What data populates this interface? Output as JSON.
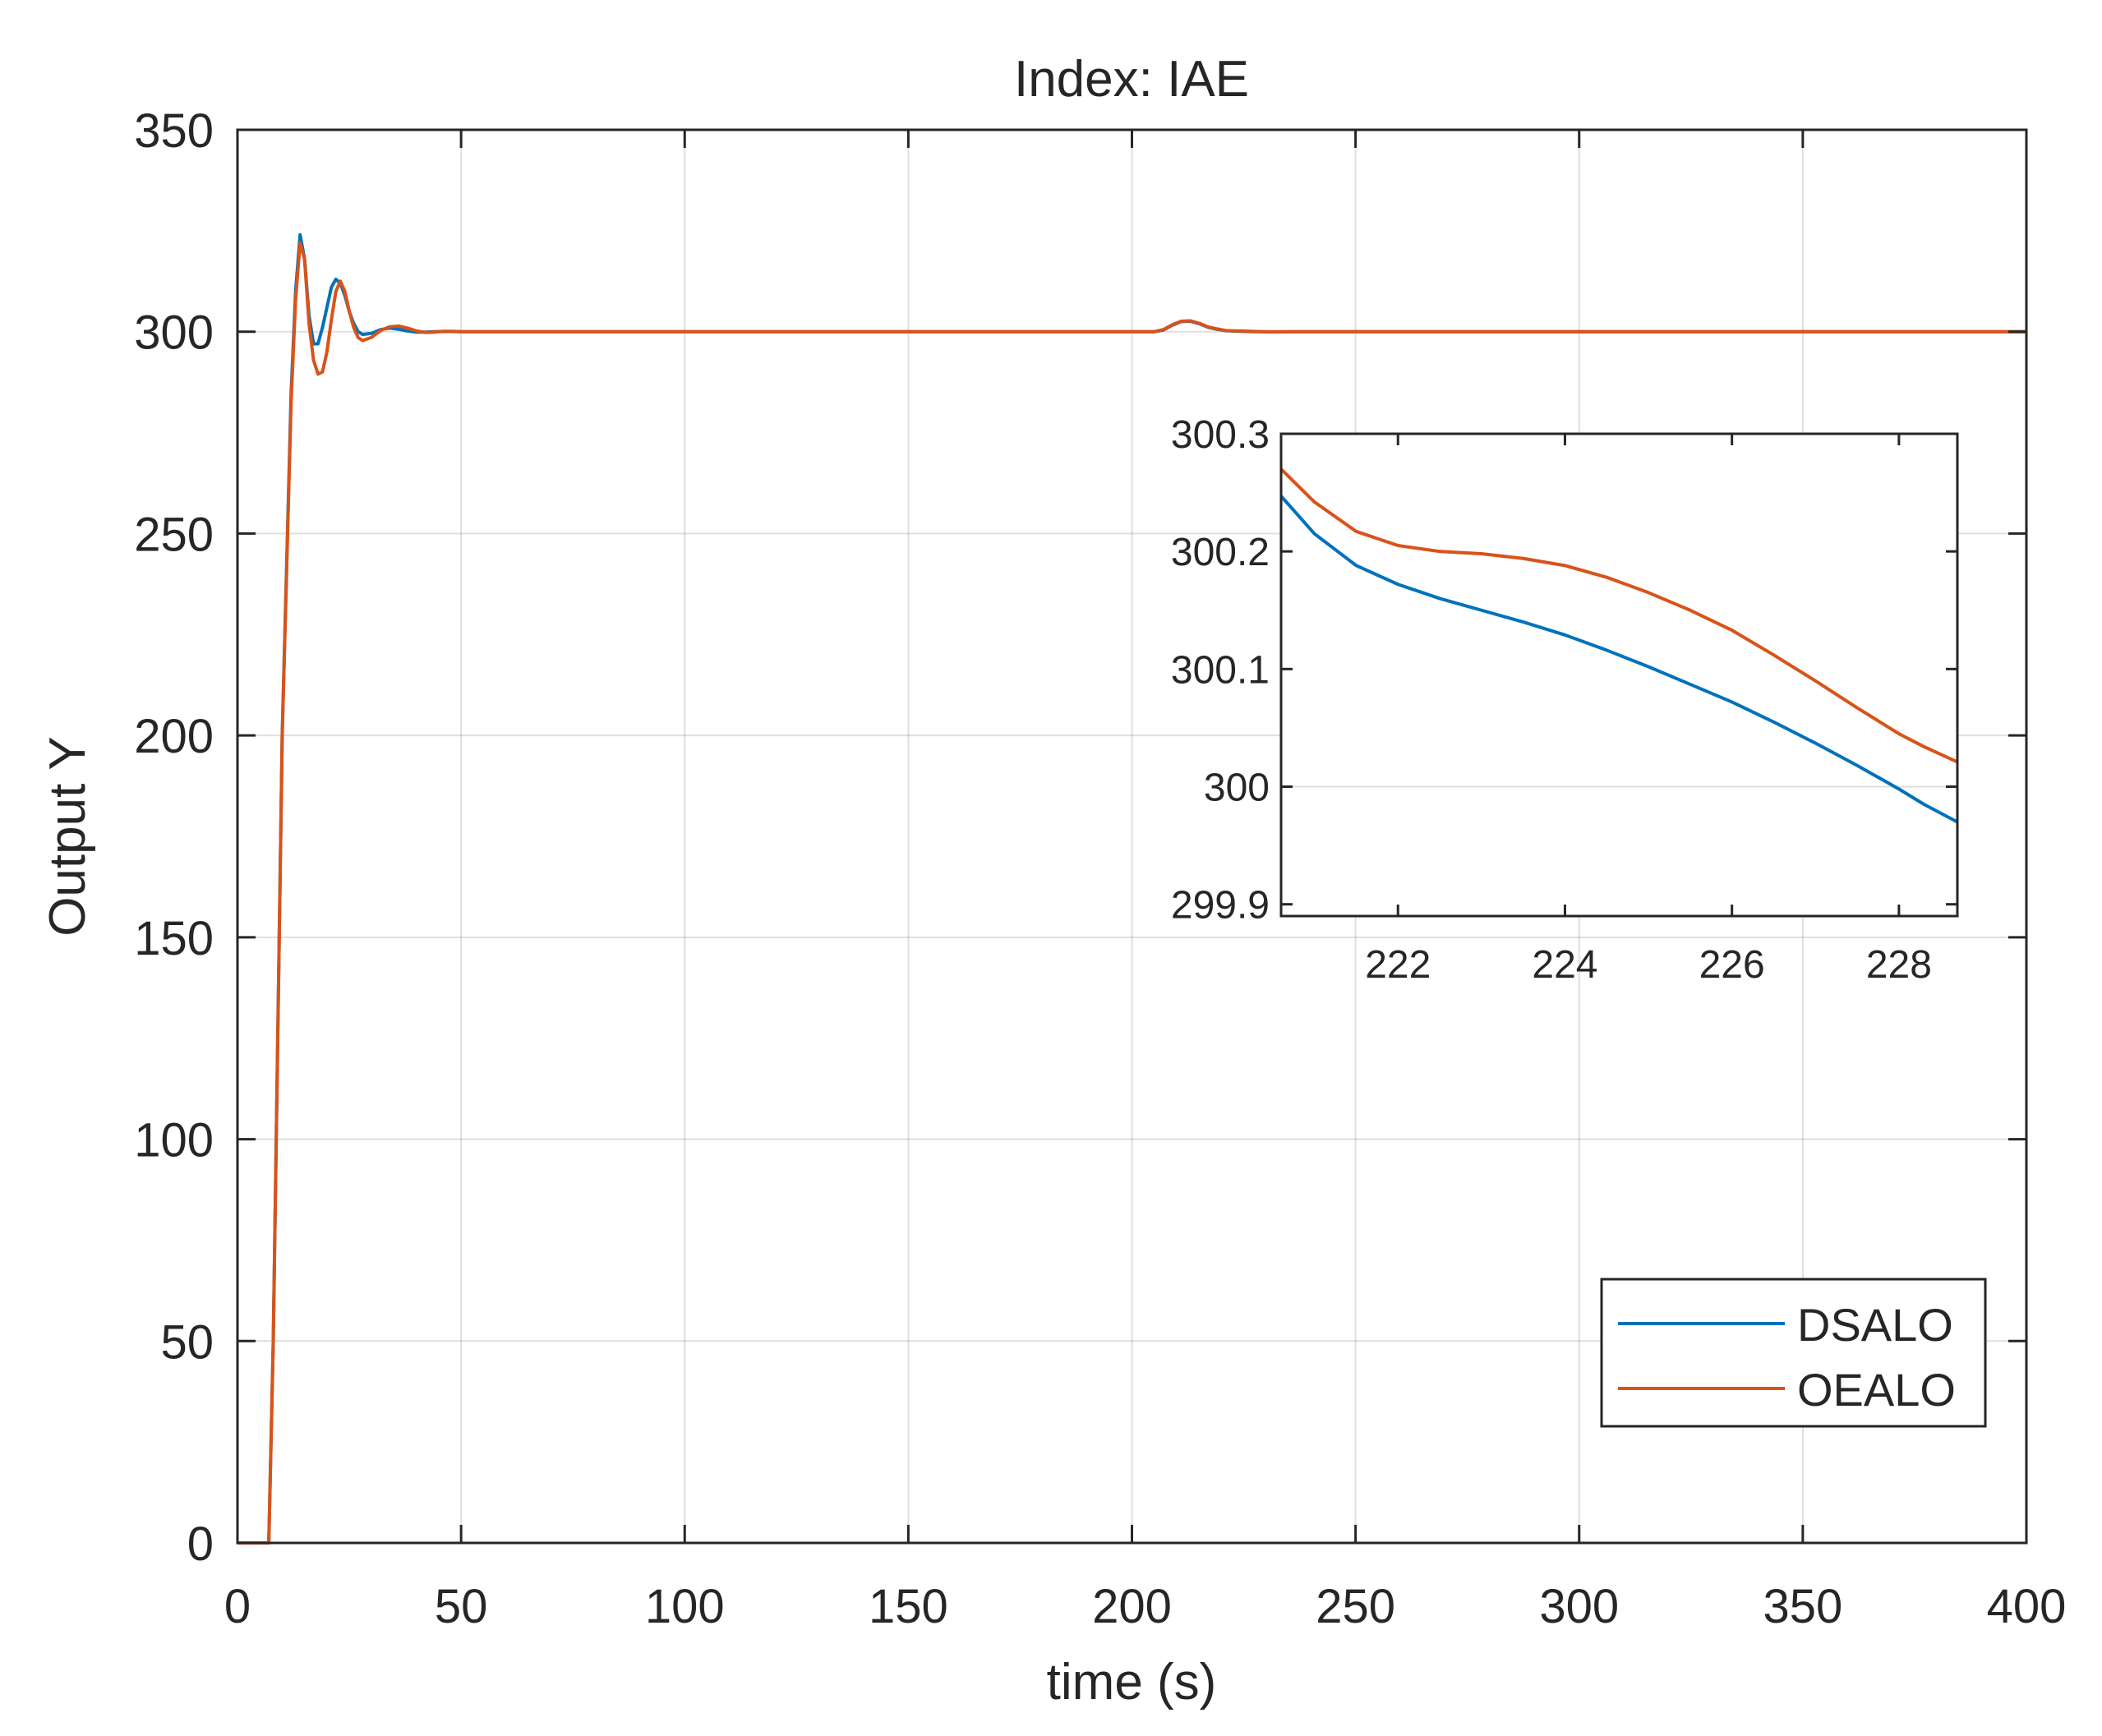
{
  "chart_data": [
    {
      "id": "main",
      "type": "line",
      "title": "Index: IAE",
      "xlabel": "time (s)",
      "ylabel": "Output Y",
      "xlim": [
        0,
        400
      ],
      "ylim": [
        0,
        350
      ],
      "xticks": [
        0,
        50,
        100,
        150,
        200,
        250,
        300,
        350,
        400
      ],
      "yticks": [
        0,
        50,
        100,
        150,
        200,
        250,
        300,
        350
      ],
      "legend_position": "bottom-right",
      "series": [
        {
          "name": "DSALO",
          "color": "#0072BD",
          "x": [
            0,
            7,
            8,
            10,
            12,
            13,
            14,
            15,
            16,
            17,
            18,
            19,
            20,
            21,
            22,
            23,
            24,
            25,
            26,
            27,
            28,
            30,
            32,
            34,
            36,
            38,
            40,
            42,
            44,
            46,
            48,
            50,
            55,
            60,
            100,
            150,
            200,
            205,
            207,
            209,
            211,
            213,
            215,
            217,
            219,
            221,
            223,
            225,
            227,
            230,
            233,
            236,
            240,
            250,
            300,
            350,
            400
          ],
          "y": [
            0,
            0,
            50,
            200,
            285,
            310,
            324,
            318,
            304,
            297,
            297,
            301,
            306,
            311,
            313,
            312,
            309,
            305,
            302,
            300,
            299.3,
            299.6,
            300.5,
            300.9,
            300.6,
            300.2,
            299.9,
            299.9,
            300.0,
            300.05,
            300.05,
            300.0,
            300.0,
            300.0,
            300.0,
            300.0,
            300.0,
            300.0,
            300.4,
            301.6,
            302.5,
            302.6,
            302.0,
            301.1,
            300.6,
            300.25,
            300.15,
            300.08,
            300.02,
            299.96,
            299.97,
            300.0,
            300.0,
            300.0,
            300.0,
            300.0,
            300.0
          ]
        },
        {
          "name": "OEALO",
          "color": "#D95319",
          "x": [
            0,
            7,
            8,
            10,
            12,
            13,
            14,
            15,
            16,
            17,
            18,
            19,
            20,
            21,
            22,
            23,
            24,
            25,
            26,
            27,
            28,
            30,
            32,
            34,
            36,
            38,
            40,
            42,
            44,
            46,
            48,
            50,
            55,
            60,
            100,
            150,
            200,
            205,
            207,
            209,
            211,
            213,
            215,
            217,
            219,
            221,
            223,
            225,
            227,
            230,
            233,
            236,
            240,
            250,
            300,
            350,
            400
          ],
          "y": [
            0,
            0,
            50,
            200,
            283,
            308,
            322,
            318,
            302,
            293,
            289.5,
            290,
            295,
            303,
            310,
            312.5,
            310,
            305,
            301,
            298.5,
            297.8,
            298.6,
            300.3,
            301.2,
            301.4,
            300.9,
            300.2,
            299.8,
            299.9,
            300.1,
            300.1,
            300.0,
            300.0,
            300.0,
            300.0,
            300.0,
            300.0,
            300.0,
            300.5,
            301.7,
            302.6,
            302.7,
            302.1,
            301.2,
            300.7,
            300.27,
            300.2,
            300.16,
            300.07,
            299.98,
            299.97,
            300.0,
            300.0,
            300.0,
            300.0,
            300.0,
            300.0
          ]
        }
      ]
    },
    {
      "id": "inset",
      "type": "line",
      "title": "",
      "xlim": [
        220.6,
        228.7
      ],
      "ylim": [
        299.89,
        300.3
      ],
      "xticks": [
        222,
        224,
        226,
        228
      ],
      "yticks": [
        299.9,
        300,
        300.1,
        300.2,
        300.3
      ],
      "ytick_labels": [
        "299.9",
        "300",
        "300.1",
        "300.2",
        "300.3"
      ],
      "series": [
        {
          "name": "DSALO",
          "color": "#0072BD",
          "x": [
            220.6,
            221.0,
            221.5,
            222.0,
            222.5,
            223.0,
            223.5,
            224.0,
            224.5,
            225.0,
            225.5,
            226.0,
            226.5,
            227.0,
            227.5,
            228.0,
            228.3,
            228.7
          ],
          "y": [
            300.247,
            300.215,
            300.188,
            300.172,
            300.16,
            300.15,
            300.14,
            300.129,
            300.116,
            300.102,
            300.087,
            300.072,
            300.055,
            300.037,
            300.018,
            299.998,
            299.985,
            299.97
          ]
        },
        {
          "name": "OEALO",
          "color": "#D95319",
          "x": [
            220.6,
            221.0,
            221.5,
            222.0,
            222.5,
            223.0,
            223.5,
            224.0,
            224.5,
            225.0,
            225.5,
            226.0,
            226.5,
            227.0,
            227.5,
            228.0,
            228.3,
            228.7
          ],
          "y": [
            300.27,
            300.242,
            300.217,
            300.205,
            300.2,
            300.198,
            300.194,
            300.188,
            300.178,
            300.165,
            300.15,
            300.133,
            300.112,
            300.09,
            300.067,
            300.045,
            300.034,
            300.021
          ]
        }
      ]
    }
  ]
}
